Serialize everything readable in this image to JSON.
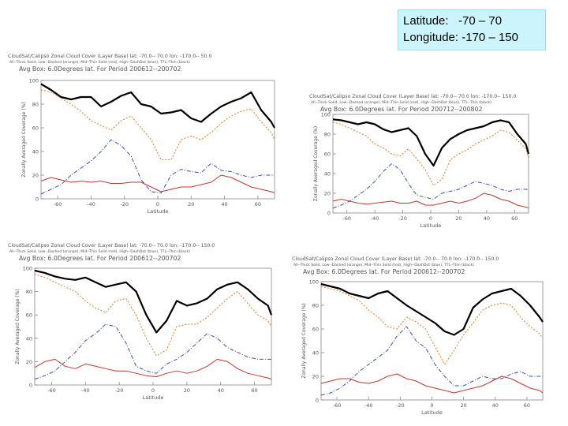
{
  "header": {
    "latitude_label": "Latitude:",
    "latitude_value": "-70 – 70",
    "longitude_label": "Longitude:",
    "longitude_value": "-170 – 150"
  },
  "colors": {
    "all": "#000000",
    "low": "#e07a1f",
    "mid": "#c0392b",
    "high": "#3a4fb0",
    "axis": "#888888"
  },
  "chart_data": [
    {
      "type": "line",
      "title": "CloudSat/Calipso Zonal Cloud Cover (Layer Base) lat: -70.0-- 70.0 lon: -170.0-- 50.0",
      "legend_text": "All--Thick Solid, Low--Dashed (orange), Mid--Thin Solid (red), High--DashDot (blue), TTL--Thin (black)",
      "subtitle": "Avg Box: 6.0Degrees lat. For Period 200612--200702",
      "xlabel": "Latitude",
      "ylabel": "Zonally Averaged Coverage (%)",
      "xlim": [
        -70,
        70
      ],
      "ylim": [
        0,
        100
      ],
      "xticks": [
        "-60",
        "-40",
        "-20",
        "0",
        "20",
        "40",
        "60"
      ],
      "yticks": [
        "0",
        "20",
        "40",
        "60",
        "80",
        "100"
      ],
      "x": [
        -70,
        -64,
        -58,
        -52,
        -46,
        -40,
        -34,
        -28,
        -22,
        -16,
        -10,
        -4,
        2,
        8,
        14,
        20,
        26,
        32,
        38,
        44,
        50,
        56,
        62,
        68,
        70
      ],
      "series": [
        {
          "name": "All",
          "values": [
            97,
            92,
            86,
            84,
            86,
            86,
            78,
            82,
            87,
            90,
            80,
            78,
            72,
            73,
            75,
            68,
            65,
            72,
            78,
            82,
            85,
            90,
            75,
            65,
            60
          ]
        },
        {
          "name": "Low",
          "values": [
            92,
            90,
            85,
            80,
            74,
            66,
            62,
            58,
            66,
            70,
            60,
            50,
            33,
            33,
            50,
            53,
            50,
            56,
            64,
            70,
            74,
            76,
            65,
            56,
            50
          ]
        },
        {
          "name": "Mid",
          "values": [
            15,
            18,
            16,
            14,
            15,
            14,
            15,
            13,
            13,
            14,
            14,
            10,
            6,
            8,
            10,
            10,
            12,
            14,
            20,
            18,
            14,
            10,
            8,
            6,
            5
          ]
        },
        {
          "name": "High",
          "values": [
            4,
            8,
            12,
            20,
            26,
            32,
            40,
            50,
            45,
            36,
            16,
            6,
            5,
            20,
            25,
            23,
            22,
            30,
            24,
            23,
            20,
            18,
            20,
            20,
            20
          ]
        }
      ]
    },
    {
      "type": "line",
      "title": "CloudSat/Calipso Zonal Cloud Cover (Layer Base) lat: -70.0-- 70.0 lon: -170.0-- 150.0",
      "legend_text": "All--Thick Solid, Low--Dashed (orange), Mid--Thin Solid (red), High--DashDot (blue), TTL--Thin (black)",
      "subtitle": "Avg Box: 6.0Degrees lat. For Period 200712--200802",
      "xlabel": "Latitude",
      "ylabel": "Zonally Averaged Coverage (%)",
      "xlim": [
        -70,
        70
      ],
      "ylim": [
        0,
        100
      ],
      "xticks": [
        "-60",
        "-40",
        "-20",
        "0",
        "20",
        "40",
        "60"
      ],
      "yticks": [
        "0",
        "20",
        "40",
        "60",
        "80",
        "100"
      ],
      "x": [
        -70,
        -64,
        -58,
        -52,
        -46,
        -40,
        -34,
        -28,
        -22,
        -16,
        -10,
        -4,
        2,
        8,
        14,
        20,
        26,
        32,
        38,
        44,
        50,
        56,
        62,
        68,
        70
      ],
      "series": [
        {
          "name": "All",
          "values": [
            95,
            94,
            92,
            90,
            92,
            90,
            85,
            82,
            84,
            86,
            78,
            60,
            48,
            66,
            75,
            80,
            84,
            86,
            88,
            92,
            94,
            92,
            80,
            70,
            60
          ]
        },
        {
          "name": "Low",
          "values": [
            92,
            90,
            86,
            82,
            78,
            70,
            66,
            60,
            58,
            65,
            55,
            44,
            28,
            34,
            54,
            60,
            64,
            70,
            74,
            78,
            84,
            82,
            74,
            65,
            55
          ]
        },
        {
          "name": "Mid",
          "values": [
            12,
            14,
            12,
            10,
            9,
            10,
            11,
            12,
            10,
            10,
            12,
            8,
            8,
            10,
            12,
            10,
            12,
            15,
            20,
            18,
            14,
            12,
            8,
            6,
            5
          ]
        },
        {
          "name": "High",
          "values": [
            5,
            8,
            12,
            18,
            24,
            32,
            42,
            50,
            44,
            30,
            18,
            16,
            14,
            20,
            22,
            24,
            28,
            32,
            30,
            28,
            24,
            22,
            24,
            24,
            24
          ]
        }
      ]
    },
    {
      "type": "line",
      "title": "CloudSat/Calipso Zonal Cloud Cover (Layer Base) lat: -70.0-- 70.0 lon: -170.0-- 150.0",
      "legend_text": "All--Thick Solid, Low--Dashed (orange), Mid--Thin Solid (red), High--DashDot (blue), TTL--Thin (black)",
      "subtitle": "Avg Box: 6.0Degrees lat. For Period 200612--200702",
      "xlabel": "Latitude",
      "ylabel": "Zonally Averaged Coverage (%)",
      "xlim": [
        -70,
        70
      ],
      "ylim": [
        0,
        100
      ],
      "xticks": [
        "-60",
        "-40",
        "-20",
        "0",
        "20",
        "40",
        "60"
      ],
      "yticks": [
        "0",
        "20",
        "40",
        "60",
        "80",
        "100"
      ],
      "x": [
        -70,
        -64,
        -58,
        -52,
        -46,
        -40,
        -34,
        -28,
        -22,
        -16,
        -10,
        -4,
        2,
        8,
        14,
        20,
        26,
        32,
        38,
        44,
        50,
        56,
        62,
        68,
        70
      ],
      "series": [
        {
          "name": "All",
          "values": [
            98,
            96,
            93,
            91,
            90,
            92,
            88,
            84,
            86,
            88,
            80,
            60,
            45,
            55,
            72,
            68,
            70,
            74,
            82,
            86,
            88,
            82,
            74,
            68,
            60
          ]
        },
        {
          "name": "Low",
          "values": [
            95,
            92,
            88,
            84,
            80,
            72,
            66,
            62,
            72,
            74,
            60,
            40,
            25,
            30,
            50,
            52,
            52,
            58,
            66,
            74,
            80,
            70,
            60,
            55,
            50
          ]
        },
        {
          "name": "Mid",
          "values": [
            15,
            20,
            22,
            16,
            14,
            18,
            16,
            14,
            12,
            12,
            10,
            8,
            7,
            10,
            12,
            10,
            12,
            16,
            22,
            20,
            14,
            10,
            8,
            6,
            5
          ]
        },
        {
          "name": "High",
          "values": [
            5,
            8,
            12,
            20,
            28,
            38,
            44,
            52,
            50,
            36,
            16,
            12,
            10,
            18,
            22,
            28,
            36,
            44,
            40,
            32,
            28,
            24,
            22,
            22,
            22
          ]
        }
      ]
    },
    {
      "type": "line",
      "title": "CloudSat/Calipso Zonal Cloud Cover (Layer Base) lat: -70.0-- 70.0 lon: -170.0-- 150.0",
      "legend_text": "All--Thick Solid, Low--Dashed (orange), Mid--Thin Solid (red), High--DashDot (blue), TTL--Thin (black)",
      "subtitle": "Avg Box: 6.0Degrees lat. For Period 200612--200702",
      "xlabel": "Latitude",
      "ylabel": "Zonally Averaged Coverage (%)",
      "xlim": [
        -70,
        70
      ],
      "ylim": [
        0,
        100
      ],
      "xticks": [
        "-60",
        "-40",
        "-20",
        "0",
        "20",
        "40",
        "60"
      ],
      "yticks": [
        "0",
        "20",
        "40",
        "60",
        "80",
        "100"
      ],
      "x": [
        -70,
        -64,
        -58,
        -52,
        -46,
        -40,
        -34,
        -28,
        -22,
        -16,
        -10,
        -4,
        2,
        8,
        14,
        20,
        26,
        32,
        38,
        44,
        50,
        56,
        62,
        68,
        70
      ],
      "series": [
        {
          "name": "All",
          "values": [
            98,
            96,
            94,
            90,
            88,
            86,
            90,
            92,
            86,
            80,
            75,
            70,
            65,
            58,
            55,
            60,
            78,
            85,
            90,
            92,
            94,
            88,
            80,
            70,
            66
          ]
        },
        {
          "name": "Low",
          "values": [
            96,
            94,
            92,
            88,
            84,
            76,
            70,
            62,
            60,
            70,
            66,
            60,
            45,
            30,
            42,
            55,
            65,
            76,
            80,
            82,
            80,
            70,
            62,
            56,
            52
          ]
        },
        {
          "name": "Mid",
          "values": [
            14,
            16,
            18,
            18,
            15,
            14,
            16,
            20,
            22,
            18,
            16,
            12,
            10,
            8,
            6,
            8,
            10,
            12,
            16,
            20,
            18,
            14,
            10,
            8,
            6
          ]
        },
        {
          "name": "High",
          "values": [
            4,
            6,
            10,
            16,
            24,
            30,
            36,
            42,
            54,
            62,
            50,
            44,
            30,
            20,
            12,
            12,
            16,
            20,
            18,
            18,
            22,
            24,
            20,
            20,
            20
          ]
        }
      ]
    }
  ]
}
